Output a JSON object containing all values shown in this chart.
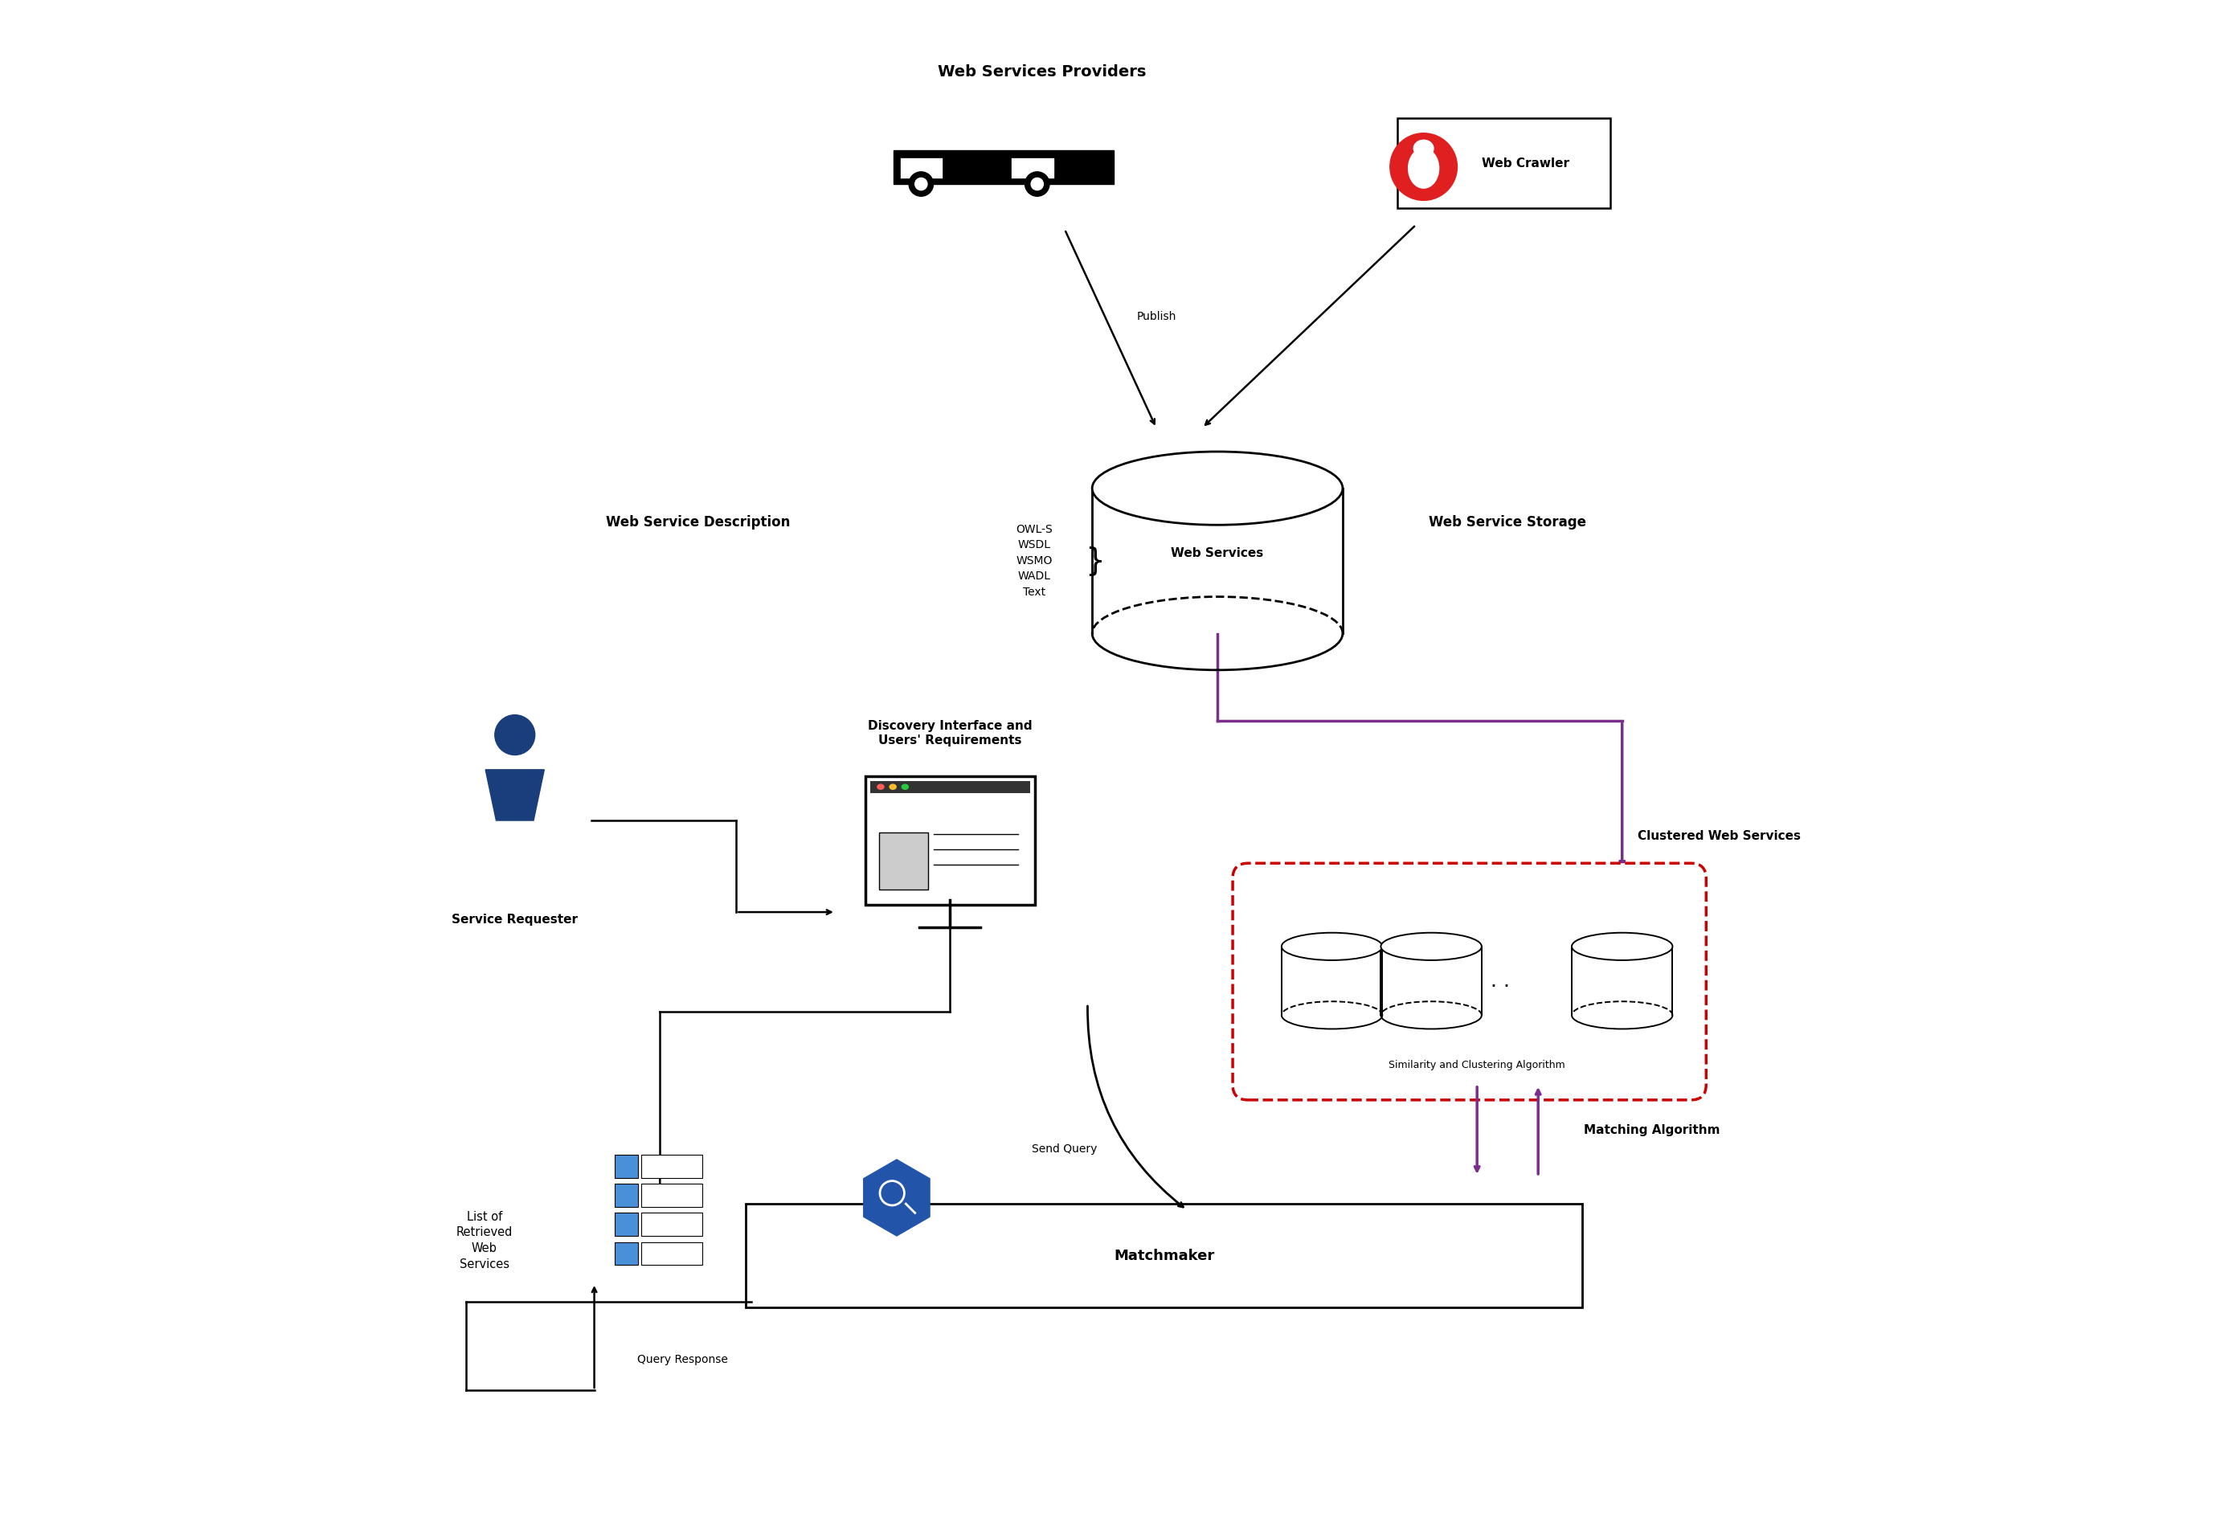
{
  "bg_color": "#ffffff",
  "figsize": [
    27.64,
    19.09
  ],
  "labels": {
    "web_services_providers": "Web Services Providers",
    "web_crawler": "Web Crawler",
    "publish": "Publish",
    "web_service_description": "Web Service Description",
    "web_service_storage": "Web Service Storage",
    "web_services": "Web Services",
    "description_list": "OWL-S\nWSDL\nWSMO\nWADL\nText",
    "discovery_interface": "Discovery Interface and\nUsers' Requirements",
    "service_requester": "Service Requester",
    "list_retrieved": "List of\nRetrieved\nWeb\nServices",
    "send_query": "Send Query",
    "clustered_web_services": "Clustered Web Services",
    "similarity_clustering": "Similarity and Clustering Algorithm",
    "matching_algorithm": "Matching Algorithm",
    "matchmaker": "Matchmaker",
    "query_response": "Query Response"
  },
  "colors": {
    "black": "#000000",
    "white": "#ffffff",
    "purple": "#7B2D8B",
    "red_dashed": "#CC0000",
    "blue_person": "#1a3d7c",
    "blue_box": "#4a90d9",
    "red_spider": "#e02020",
    "blue_hex": "#2255aa"
  }
}
